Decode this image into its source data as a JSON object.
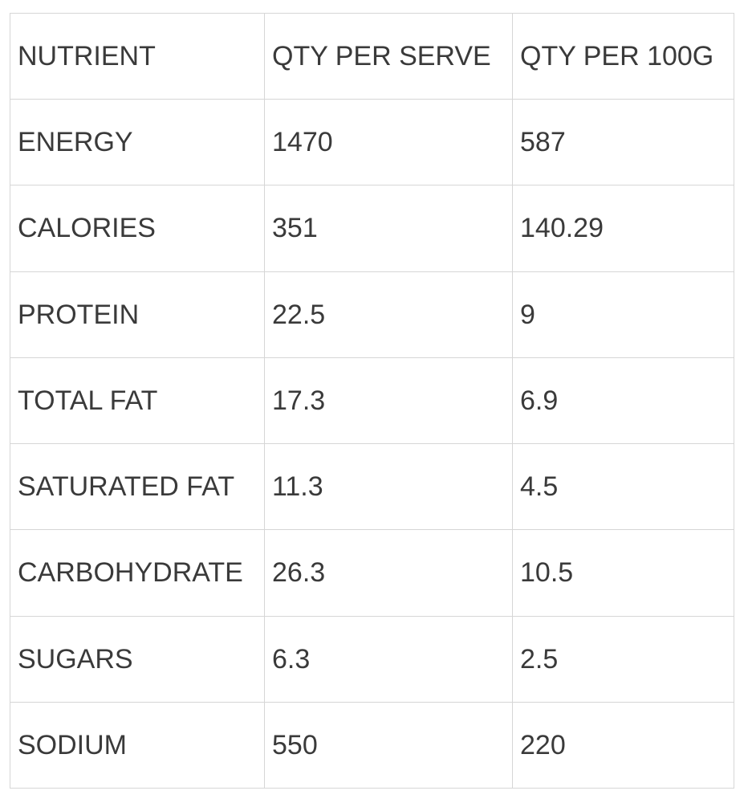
{
  "table": {
    "headers": [
      "NUTRIENT",
      "QTY PER SERVE",
      "QTY PER 100G"
    ],
    "rows": [
      [
        "ENERGY",
        "1470",
        "587"
      ],
      [
        "CALORIES",
        "351",
        "140.29"
      ],
      [
        "PROTEIN",
        "22.5",
        "9"
      ],
      [
        "TOTAL FAT",
        "17.3",
        "6.9"
      ],
      [
        "SATURATED FAT",
        "11.3",
        "4.5"
      ],
      [
        "CARBOHYDRATE",
        "26.3",
        "10.5"
      ],
      [
        "SUGARS",
        "6.3",
        "2.5"
      ],
      [
        "SODIUM",
        "550",
        "220"
      ]
    ]
  },
  "colors": {
    "text": "#3a3a3a",
    "border": "#d6d6d6",
    "background": "#ffffff"
  }
}
